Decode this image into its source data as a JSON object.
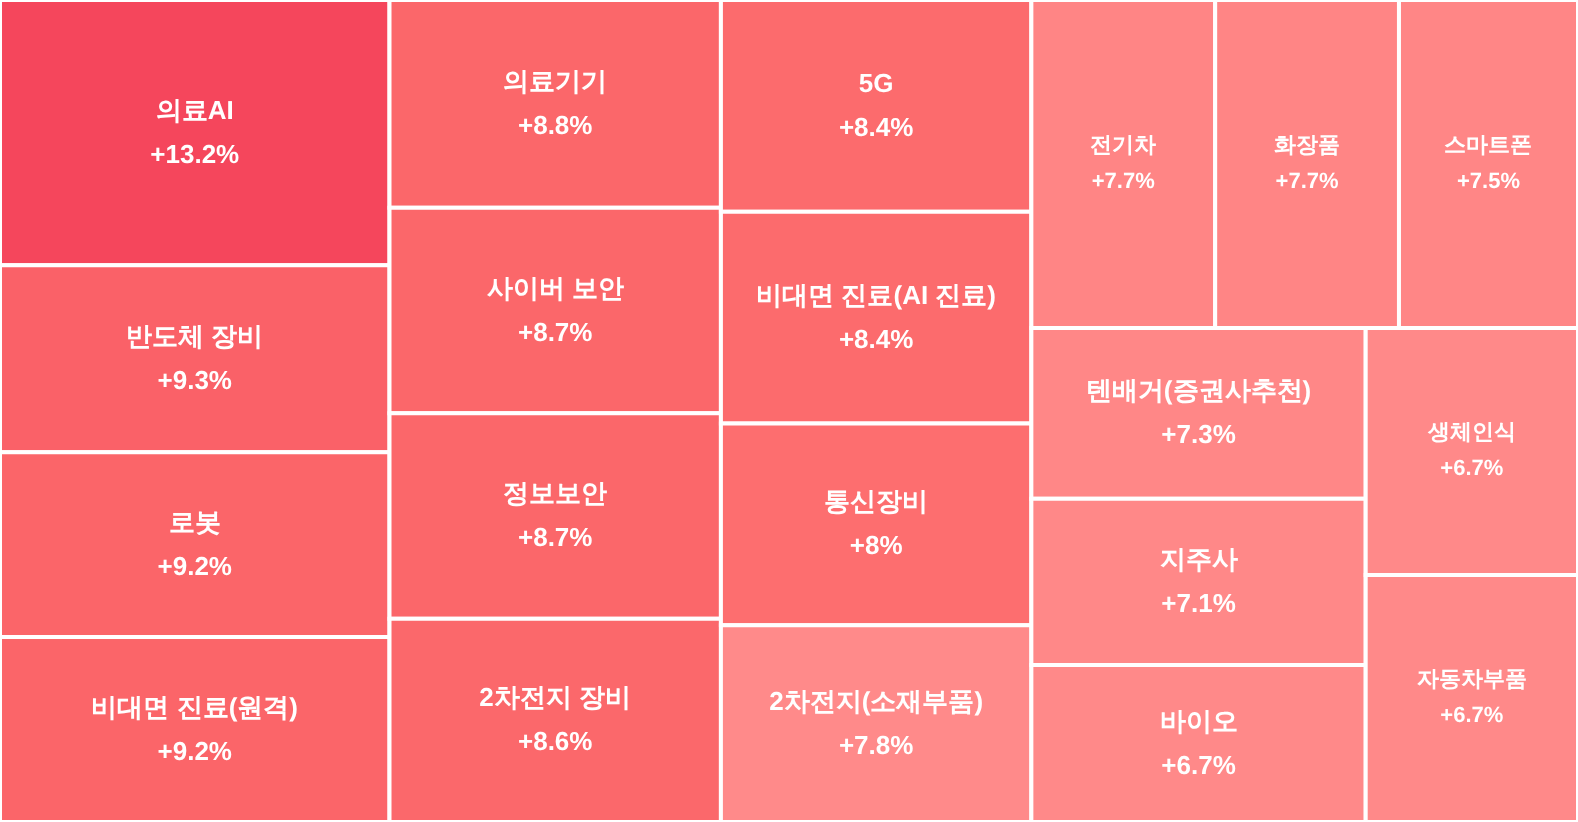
{
  "chart_data": {
    "type": "other",
    "categories": [
      "의료AI",
      "반도체 장비",
      "로봇",
      "비대면 진료(원격)",
      "의료기기",
      "사이버 보안",
      "정보보안",
      "2차전지 장비",
      "5G",
      "비대면 진료(AI 진료)",
      "통신장비",
      "2차전지(소재부품)",
      "전기차",
      "화장품",
      "스마트폰",
      "텐배거(증권사추천)",
      "지주사",
      "바이오",
      "생체인식",
      "자동차부품"
    ],
    "values": [
      13.2,
      9.3,
      9.2,
      9.2,
      8.8,
      8.7,
      8.7,
      8.6,
      8.4,
      8.4,
      8.0,
      7.8,
      7.7,
      7.7,
      7.5,
      7.3,
      7.1,
      6.7,
      6.7,
      6.7
    ],
    "value_labels": [
      "+13.2%",
      "+9.3%",
      "+9.2%",
      "+9.2%",
      "+8.8%",
      "+8.7%",
      "+8.7%",
      "+8.6%",
      "+8.4%",
      "+8.4%",
      "+8%",
      "+7.8%",
      "+7.7%",
      "+7.7%",
      "+7.5%",
      "+7.3%",
      "+7.1%",
      "+6.7%",
      "+6.7%",
      "+6.7%"
    ],
    "colors": [
      "#f5465c",
      "#fa6168",
      "#fb6569",
      "#fb6569",
      "#fb676a",
      "#fb676a",
      "#fb676a",
      "#fb686b",
      "#fc6b6d",
      "#fc6b6d",
      "#fd6e6f",
      "#ff8a8a",
      "#ff8585",
      "#ff8585",
      "#ff8686",
      "#ff8787",
      "#ff8888",
      "#ff8989",
      "#ff8989",
      "#ff8989"
    ]
  }
}
